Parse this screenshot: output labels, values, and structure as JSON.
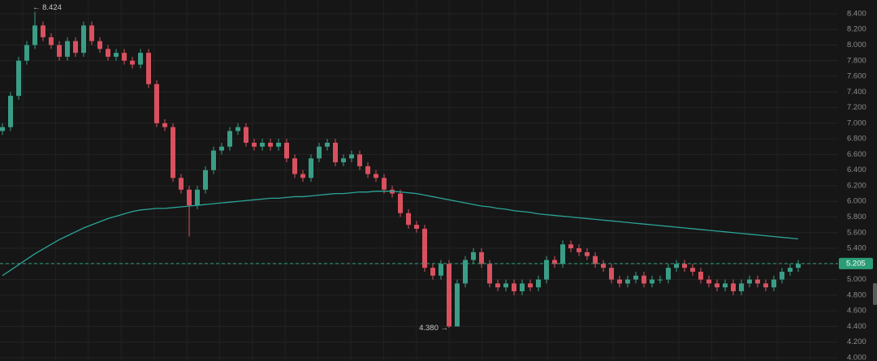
{
  "chart_data": {
    "type": "candlestick",
    "ylim": [
      3.958,
      8.576
    ],
    "yticks": [
      {
        "value": 4.0,
        "label": "4.000"
      },
      {
        "value": 4.2,
        "label": "4.200"
      },
      {
        "value": 4.4,
        "label": "4.400"
      },
      {
        "value": 4.6,
        "label": "4.600"
      },
      {
        "value": 4.8,
        "label": "4.800"
      },
      {
        "value": 5.0,
        "label": "5.000"
      },
      {
        "value": 5.2,
        "label": "5.200"
      },
      {
        "value": 5.4,
        "label": "5.400"
      },
      {
        "value": 5.6,
        "label": "5.600"
      },
      {
        "value": 5.8,
        "label": "5.800"
      },
      {
        "value": 6.0,
        "label": "6.000"
      },
      {
        "value": 6.2,
        "label": "6.200"
      },
      {
        "value": 6.4,
        "label": "6.400"
      },
      {
        "value": 6.6,
        "label": "6.600"
      },
      {
        "value": 6.8,
        "label": "6.800"
      },
      {
        "value": 7.0,
        "label": "7.000"
      },
      {
        "value": 7.2,
        "label": "7.200"
      },
      {
        "value": 7.4,
        "label": "7.400"
      },
      {
        "value": 7.6,
        "label": "7.600"
      },
      {
        "value": 7.8,
        "label": "7.800"
      },
      {
        "value": 8.0,
        "label": "8.000"
      },
      {
        "value": 8.2,
        "label": "8.200"
      },
      {
        "value": 8.4,
        "label": "8.400"
      }
    ],
    "grid": true,
    "up_color": "#3a9e86",
    "down_color": "#d9515f",
    "open": [
      6.9,
      6.95,
      7.35,
      7.8,
      8.0,
      8.25,
      8.1,
      8.0,
      7.85,
      8.05,
      7.9,
      8.25,
      8.05,
      7.95,
      7.85,
      7.9,
      7.8,
      7.75,
      7.9,
      7.5,
      7.0,
      6.95,
      6.3,
      6.15,
      5.95,
      6.15,
      6.4,
      6.65,
      6.7,
      6.9,
      6.95,
      6.75,
      6.7,
      6.75,
      6.7,
      6.75,
      6.55,
      6.35,
      6.3,
      6.55,
      6.7,
      6.75,
      6.5,
      6.55,
      6.6,
      6.45,
      6.35,
      6.3,
      6.15,
      6.1,
      5.85,
      5.7,
      5.65,
      5.15,
      5.05,
      5.2,
      4.4,
      4.95,
      5.25,
      5.35,
      5.2,
      4.95,
      4.9,
      4.95,
      4.85,
      4.95,
      4.9,
      5.0,
      5.25,
      5.2,
      5.45,
      5.4,
      5.35,
      5.3,
      5.2,
      5.15,
      5.0,
      4.95,
      5.0,
      5.05,
      4.95,
      5.0,
      5.0,
      5.15,
      5.2,
      5.15,
      5.1,
      5.0,
      4.95,
      4.9,
      4.95,
      4.85,
      4.95,
      5.0,
      4.95,
      4.9,
      5.0,
      5.1,
      5.15
    ],
    "high": [
      7.0,
      7.4,
      7.85,
      8.05,
      8.424,
      8.3,
      8.15,
      8.05,
      8.1,
      8.1,
      8.3,
      8.3,
      8.1,
      8.0,
      7.95,
      7.95,
      7.85,
      7.95,
      7.95,
      7.55,
      7.05,
      7.0,
      6.35,
      6.2,
      6.2,
      6.45,
      6.7,
      6.75,
      6.95,
      7.0,
      7.0,
      6.8,
      6.8,
      6.8,
      6.8,
      6.8,
      6.6,
      6.4,
      6.6,
      6.75,
      6.8,
      6.8,
      6.6,
      6.65,
      6.65,
      6.5,
      6.4,
      6.35,
      6.2,
      6.15,
      5.9,
      5.75,
      5.7,
      5.2,
      5.25,
      5.25,
      5.0,
      5.3,
      5.4,
      5.4,
      5.25,
      5.0,
      5.0,
      5.0,
      5.0,
      5.0,
      5.05,
      5.3,
      5.3,
      5.5,
      5.5,
      5.45,
      5.4,
      5.35,
      5.25,
      5.2,
      5.05,
      5.05,
      5.1,
      5.1,
      5.05,
      5.05,
      5.2,
      5.25,
      5.25,
      5.2,
      5.15,
      5.05,
      5.0,
      5.0,
      5.0,
      5.0,
      5.05,
      5.05,
      5.0,
      5.05,
      5.15,
      5.2,
      5.25
    ],
    "low": [
      6.85,
      6.9,
      7.3,
      7.75,
      7.95,
      8.05,
      7.95,
      7.8,
      7.8,
      7.85,
      7.85,
      8.0,
      7.9,
      7.8,
      7.8,
      7.75,
      7.7,
      7.7,
      7.45,
      6.95,
      6.9,
      6.25,
      6.1,
      5.55,
      5.9,
      6.1,
      6.35,
      6.6,
      6.65,
      6.85,
      6.7,
      6.65,
      6.65,
      6.65,
      6.65,
      6.5,
      6.3,
      6.25,
      6.25,
      6.5,
      6.65,
      6.45,
      6.45,
      6.5,
      6.4,
      6.3,
      6.25,
      6.1,
      6.05,
      5.8,
      5.65,
      5.6,
      5.1,
      5.0,
      5.0,
      4.38,
      4.4,
      4.9,
      5.2,
      5.15,
      4.9,
      4.85,
      4.85,
      4.8,
      4.8,
      4.85,
      4.85,
      4.95,
      5.15,
      5.15,
      5.35,
      5.3,
      5.25,
      5.15,
      5.1,
      4.95,
      4.9,
      4.9,
      4.95,
      4.9,
      4.9,
      4.95,
      4.95,
      5.1,
      5.1,
      5.05,
      4.95,
      4.9,
      4.85,
      4.85,
      4.8,
      4.8,
      4.9,
      4.9,
      4.85,
      4.85,
      4.95,
      5.05,
      5.1
    ],
    "close": [
      6.95,
      7.35,
      7.8,
      8.0,
      8.25,
      8.1,
      8.0,
      7.85,
      8.05,
      7.9,
      8.25,
      8.05,
      7.95,
      7.85,
      7.9,
      7.8,
      7.75,
      7.9,
      7.5,
      7.0,
      6.95,
      6.3,
      6.15,
      5.95,
      6.15,
      6.4,
      6.65,
      6.7,
      6.9,
      6.95,
      6.75,
      6.7,
      6.75,
      6.7,
      6.75,
      6.55,
      6.35,
      6.3,
      6.55,
      6.7,
      6.75,
      6.5,
      6.55,
      6.6,
      6.45,
      6.35,
      6.3,
      6.15,
      6.1,
      5.85,
      5.7,
      5.65,
      5.15,
      5.05,
      5.2,
      4.4,
      4.95,
      5.25,
      5.35,
      5.2,
      4.95,
      4.9,
      4.95,
      4.85,
      4.95,
      4.9,
      5.0,
      5.25,
      5.2,
      5.45,
      5.4,
      5.35,
      5.3,
      5.2,
      5.15,
      5.0,
      4.95,
      5.0,
      5.05,
      4.95,
      5.0,
      5.0,
      5.15,
      5.2,
      5.15,
      5.1,
      5.0,
      4.95,
      4.9,
      4.95,
      4.85,
      4.95,
      5.0,
      4.95,
      4.9,
      5.0,
      5.1,
      5.15,
      5.2
    ],
    "moving_average": {
      "color": "#2ba497",
      "values": [
        5.05,
        5.12,
        5.19,
        5.26,
        5.33,
        5.39,
        5.45,
        5.51,
        5.56,
        5.61,
        5.66,
        5.7,
        5.74,
        5.78,
        5.81,
        5.84,
        5.87,
        5.89,
        5.9,
        5.91,
        5.91,
        5.92,
        5.93,
        5.94,
        5.95,
        5.96,
        5.97,
        5.98,
        5.99,
        6.0,
        6.01,
        6.02,
        6.03,
        6.04,
        6.04,
        6.05,
        6.06,
        6.06,
        6.07,
        6.08,
        6.09,
        6.1,
        6.1,
        6.11,
        6.12,
        6.12,
        6.13,
        6.13,
        6.13,
        6.12,
        6.11,
        6.1,
        6.08,
        6.06,
        6.04,
        6.02,
        6.0,
        5.98,
        5.96,
        5.94,
        5.93,
        5.91,
        5.9,
        5.88,
        5.87,
        5.86,
        5.84,
        5.83,
        5.82,
        5.81,
        5.8,
        5.79,
        5.78,
        5.77,
        5.76,
        5.75,
        5.74,
        5.73,
        5.72,
        5.71,
        5.7,
        5.69,
        5.68,
        5.67,
        5.66,
        5.65,
        5.64,
        5.63,
        5.62,
        5.61,
        5.6,
        5.59,
        5.58,
        5.57,
        5.56,
        5.55,
        5.54,
        5.53,
        5.52
      ]
    },
    "price_label": {
      "value": 5.205,
      "label": "5.205",
      "color": "#2b9d76"
    },
    "high_label": {
      "value": 8.424,
      "label": "← 8.424"
    },
    "low_label": {
      "value": 4.38,
      "label": "4.380 →"
    }
  }
}
